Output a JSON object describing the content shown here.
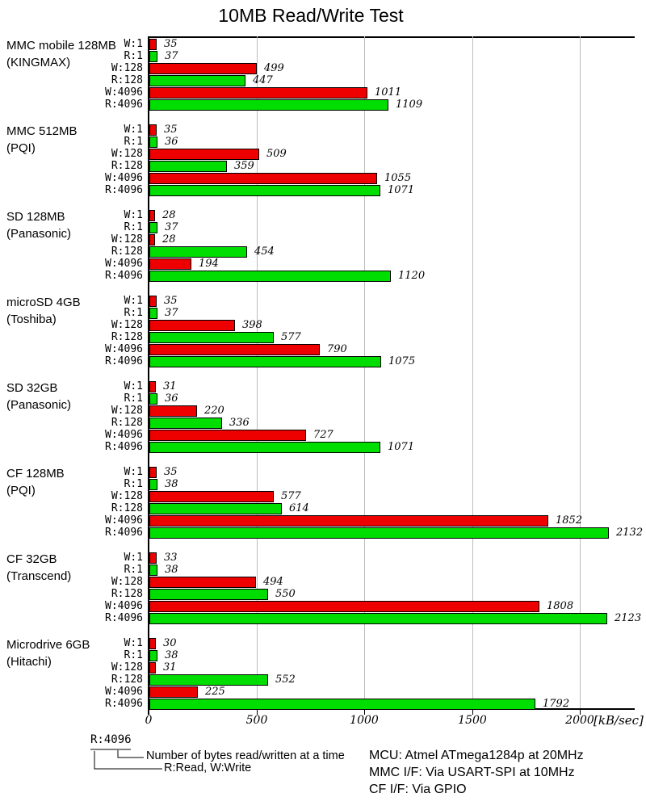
{
  "title": "10MB Read/Write Test",
  "chart_data": {
    "type": "bar",
    "orientation": "horizontal",
    "title": "10MB Read/Write Test",
    "xlabel_unit": "[kB/sec]",
    "xlim": [
      0,
      2250
    ],
    "xticks": [
      0,
      500,
      1000,
      1500,
      2000
    ],
    "grid": true,
    "row_labels": [
      "W:1",
      "R:1",
      "W:128",
      "R:128",
      "W:4096",
      "R:4096"
    ],
    "write_color": "#ee0000",
    "read_color": "#00dd00",
    "groups": [
      {
        "name": "MMC mobile 128MB",
        "vendor": "(KINGMAX)",
        "values": [
          35,
          37,
          499,
          447,
          1011,
          1109
        ]
      },
      {
        "name": "MMC 512MB",
        "vendor": "(PQI)",
        "values": [
          35,
          36,
          509,
          359,
          1055,
          1071
        ]
      },
      {
        "name": "SD 128MB",
        "vendor": "(Panasonic)",
        "values": [
          28,
          37,
          28,
          454,
          194,
          1120
        ]
      },
      {
        "name": "microSD 4GB",
        "vendor": "(Toshiba)",
        "values": [
          35,
          37,
          398,
          577,
          790,
          1075
        ]
      },
      {
        "name": "SD 32GB",
        "vendor": "(Panasonic)",
        "values": [
          31,
          36,
          220,
          336,
          727,
          1071
        ]
      },
      {
        "name": "CF 128MB",
        "vendor": "(PQI)",
        "values": [
          35,
          38,
          577,
          614,
          1852,
          2132
        ]
      },
      {
        "name": "CF 32GB",
        "vendor": "(Transcend)",
        "values": [
          33,
          38,
          494,
          550,
          1808,
          2123
        ]
      },
      {
        "name": "Microdrive 6GB",
        "vendor": "(Hitachi)",
        "values": [
          30,
          38,
          31,
          552,
          225,
          1792
        ]
      }
    ]
  },
  "legend": {
    "example_label": "R:4096",
    "bytes_note": "Number of bytes read/written at a time",
    "rw_note": "R:Read, W:Write"
  },
  "footnotes": [
    "MCU: Atmel ATmega1284p at 20MHz",
    "MMC I/F: Via USART-SPI at 10MHz",
    "CF I/F: Via GPIO"
  ]
}
